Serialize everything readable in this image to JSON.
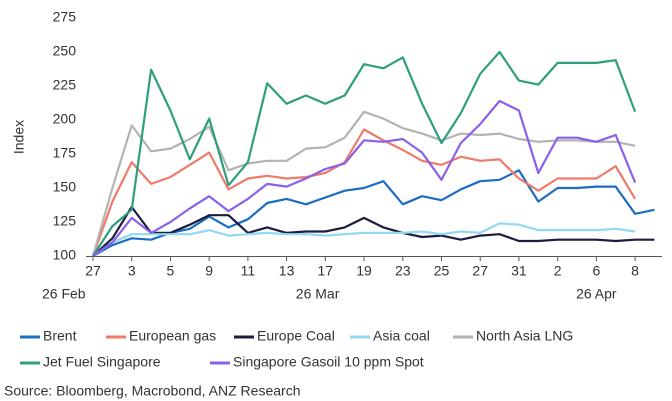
{
  "chart_data": {
    "type": "line",
    "y_label": "Index",
    "categories": [
      "27",
      null,
      "3",
      null,
      "5",
      null,
      "9",
      null,
      "11",
      null,
      "13",
      null,
      "17",
      null,
      "19",
      null,
      "23",
      null,
      "25",
      null,
      "27",
      null,
      "31",
      null,
      "2",
      null,
      "6",
      null,
      "8",
      null
    ],
    "period_labels": [
      "26 Feb",
      "26 Mar",
      "26 Apr"
    ],
    "ylim": [
      100,
      275
    ],
    "yticks": [
      100,
      125,
      150,
      175,
      200,
      225,
      250,
      275
    ],
    "grid": false,
    "series": [
      {
        "name": "Brent",
        "color": "#1a6cc4",
        "values": [
          100,
          108,
          113,
          112,
          117,
          120,
          129,
          121,
          127,
          139,
          142,
          138,
          143,
          148,
          150,
          155,
          138,
          144,
          141,
          149,
          155,
          156,
          163,
          140,
          150,
          150,
          151,
          151,
          131,
          134
        ]
      },
      {
        "name": "European gas",
        "color": "#f07a6a",
        "values": [
          100,
          140,
          169,
          153,
          158,
          167,
          176,
          149,
          157,
          159,
          157,
          158,
          161,
          169,
          193,
          185,
          178,
          170,
          167,
          173,
          170,
          171,
          157,
          148,
          157,
          157,
          157,
          166,
          142,
          null
        ]
      },
      {
        "name": "Europe Coal",
        "color": "#1c1c3e",
        "values": [
          100,
          113,
          136,
          117,
          117,
          123,
          130,
          130,
          117,
          121,
          117,
          118,
          118,
          121,
          128,
          121,
          117,
          114,
          115,
          112,
          115,
          116,
          111,
          111,
          112,
          112,
          112,
          111,
          112,
          112
        ]
      },
      {
        "name": "Asia coal",
        "color": "#92d8ef",
        "values": [
          100,
          110,
          116,
          116,
          116,
          116,
          119,
          115,
          116,
          117,
          116,
          116,
          115,
          116,
          117,
          117,
          117,
          118,
          116,
          118,
          117,
          124,
          123,
          119,
          119,
          119,
          119,
          120,
          118,
          null
        ]
      },
      {
        "name": "North Asia LNG",
        "color": "#b3b3b3",
        "values": [
          100,
          150,
          196,
          177,
          179,
          186,
          195,
          163,
          168,
          170,
          170,
          179,
          180,
          187,
          206,
          201,
          194,
          190,
          185,
          190,
          189,
          190,
          186,
          184,
          185,
          185,
          184,
          184,
          181,
          null
        ]
      },
      {
        "name": "Jet Fuel Singapore",
        "color": "#2e9e7e",
        "values": [
          100,
          122,
          134,
          237,
          207,
          171,
          201,
          152,
          169,
          227,
          212,
          218,
          212,
          218,
          241,
          238,
          246,
          212,
          183,
          205,
          234,
          250,
          229,
          226,
          242,
          242,
          242,
          244,
          206,
          null
        ]
      },
      {
        "name": "Singapore Gasoil 10 ppm Spot",
        "color": "#8a60e8",
        "values": [
          100,
          110,
          128,
          117,
          125,
          135,
          144,
          133,
          142,
          153,
          151,
          157,
          164,
          168,
          185,
          184,
          186,
          176,
          156,
          183,
          197,
          214,
          207,
          161,
          187,
          187,
          184,
          189,
          154,
          null
        ]
      }
    ],
    "source": "Source:  Bloomberg, Macrobond, ANZ Research"
  }
}
